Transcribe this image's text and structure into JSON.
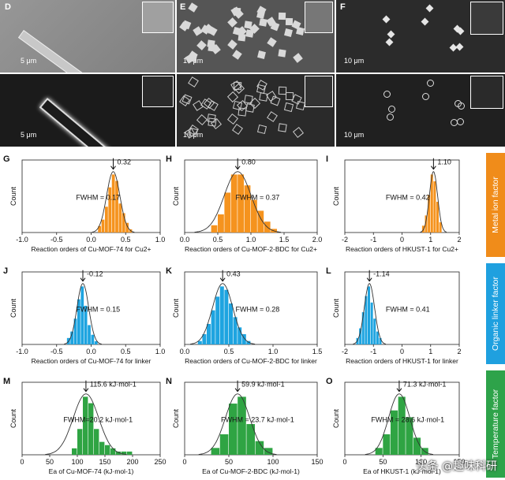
{
  "micrographs": [
    {
      "label": "D",
      "scale_top": "5 μm",
      "scale_bottom": "5 μm"
    },
    {
      "label": "E",
      "scale_top": "10 μm",
      "scale_bottom": "10 μm"
    },
    {
      "label": "F",
      "scale_top": "10 μm",
      "scale_bottom": "10 μm"
    }
  ],
  "side_labels": [
    {
      "text": "Metal ion factor",
      "color": "#f08c1a"
    },
    {
      "text": "Organic linker factor",
      "color": "#1fa0df"
    },
    {
      "text": "Temperature factor",
      "color": "#2ea34a"
    }
  ],
  "watermark": "头条 @趣味科研",
  "chart_data": [
    {
      "label": "G",
      "type": "bar",
      "color": "#f5931e",
      "ylabel": "Count",
      "xlabel": "Reaction orders of Cu-MOF-74 for Cu2+",
      "xlim": [
        -1.0,
        1.0
      ],
      "xticks": [
        "-1.0",
        "-0.5",
        "0.0",
        "0.5",
        "1.0"
      ],
      "peak_label": "0.32",
      "peak": 0.32,
      "fwhm_label": "FWHM = 0.17",
      "bin_edges": [
        0.1,
        0.15,
        0.2,
        0.25,
        0.3,
        0.35,
        0.4,
        0.45,
        0.5,
        0.55,
        0.6
      ],
      "counts": [
        2,
        4,
        8,
        14,
        18,
        16,
        9,
        6,
        3,
        1
      ]
    },
    {
      "label": "H",
      "type": "bar",
      "color": "#f5931e",
      "ylabel": "Count",
      "xlabel": "Reaction orders of Cu-MOF-2-BDC for Cu2+",
      "xlim": [
        0.0,
        2.0
      ],
      "xticks": [
        "0.0",
        "0.5",
        "1.0",
        "1.5",
        "2.0"
      ],
      "peak_label": "0.80",
      "peak": 0.8,
      "fwhm_label": "FWHM = 0.37",
      "bin_edges": [
        0.4,
        0.5,
        0.6,
        0.7,
        0.8,
        0.9,
        1.0,
        1.1,
        1.2,
        1.3,
        1.4
      ],
      "counts": [
        2,
        5,
        11,
        16,
        16,
        13,
        9,
        6,
        3,
        1
      ]
    },
    {
      "label": "I",
      "type": "bar",
      "color": "#f5931e",
      "ylabel": "Count",
      "xlabel": "Reaction orders of HKUST-1 for Cu2+",
      "xlim": [
        -2,
        2
      ],
      "xticks": [
        "-2",
        "-1",
        "0",
        "1",
        "2"
      ],
      "peak_label": "1.10",
      "peak": 1.1,
      "fwhm_label": "FWHM = 0.42",
      "bin_edges": [
        0.7,
        0.8,
        0.9,
        1.0,
        1.1,
        1.2,
        1.3,
        1.4
      ],
      "counts": [
        2,
        5,
        11,
        17,
        15,
        9,
        3
      ]
    },
    {
      "label": "J",
      "type": "bar",
      "color": "#1ea4e0",
      "ylabel": "Count",
      "xlabel": "Reaction orders of Cu-MOF-74 for linker",
      "xlim": [
        -1.0,
        1.0
      ],
      "xticks": [
        "-1.0",
        "-0.5",
        "0.0",
        "0.5",
        "1.0"
      ],
      "peak_label": "-0.12",
      "peak": -0.12,
      "fwhm_label": "FWHM = 0.15",
      "bin_edges": [
        -0.35,
        -0.3,
        -0.25,
        -0.2,
        -0.15,
        -0.1,
        -0.05,
        0.0,
        0.05,
        0.1
      ],
      "counts": [
        2,
        4,
        8,
        14,
        18,
        12,
        6,
        3,
        1
      ]
    },
    {
      "label": "K",
      "type": "bar",
      "color": "#1ea4e0",
      "ylabel": "Count",
      "xlabel": "Reaction orders of Cu-MOF-2-BDC for linker",
      "xlim": [
        0.0,
        1.5
      ],
      "xticks": [
        "0.0",
        "0.5",
        "1.0",
        "1.5"
      ],
      "peak_label": "0.43",
      "peak": 0.43,
      "fwhm_label": "FWHM = 0.28",
      "bin_edges": [
        0.15,
        0.2,
        0.25,
        0.3,
        0.35,
        0.4,
        0.45,
        0.5,
        0.55,
        0.6,
        0.65,
        0.7,
        0.75
      ],
      "counts": [
        1,
        3,
        6,
        10,
        14,
        17,
        16,
        12,
        8,
        5,
        3,
        1
      ]
    },
    {
      "label": "L",
      "type": "bar",
      "color": "#1ea4e0",
      "ylabel": "Count",
      "xlabel": "Reaction orders of HKUST-1 for linker",
      "xlim": [
        -2,
        2
      ],
      "xticks": [
        "-2",
        "-1",
        "0",
        "1",
        "2"
      ],
      "peak_label": "-1.14",
      "peak": -1.14,
      "fwhm_label": "FWHM = 0.41",
      "bin_edges": [
        -1.6,
        -1.5,
        -1.4,
        -1.3,
        -1.2,
        -1.1,
        -1.0,
        -0.9,
        -0.8,
        -0.7
      ],
      "counts": [
        2,
        5,
        10,
        15,
        18,
        13,
        8,
        4,
        2
      ]
    },
    {
      "label": "M",
      "type": "bar",
      "color": "#2fa443",
      "ylabel": "Count",
      "xlabel": "Ea of Cu-MOF-74 (kJ·mol-1)",
      "xlim": [
        0,
        250
      ],
      "xticks": [
        "0",
        "50",
        "100",
        "150",
        "200",
        "250"
      ],
      "peak_label": "115.6 kJ·mol-1",
      "peak": 115.6,
      "fwhm_label": "FWHM=20.2 kJ·mol-1",
      "bin_edges": [
        90,
        100,
        110,
        120,
        130,
        140,
        150,
        160,
        170,
        180,
        190,
        200
      ],
      "counts": [
        2,
        8,
        18,
        16,
        8,
        4,
        3,
        2,
        1,
        1,
        1
      ]
    },
    {
      "label": "N",
      "type": "bar",
      "color": "#2fa443",
      "ylabel": "Count",
      "xlabel": "Ea of Cu-MOF-2-BDC (kJ·mol-1)",
      "xlim": [
        0,
        150
      ],
      "xticks": [
        "0",
        "50",
        "100",
        "150"
      ],
      "peak_label": "59.9 kJ·mol-1",
      "peak": 59.9,
      "fwhm_label": "FWHM = 23.7 kJ·mol-1",
      "bin_edges": [
        30,
        40,
        50,
        60,
        70,
        80,
        90,
        100
      ],
      "counts": [
        2,
        6,
        15,
        17,
        9,
        4,
        2
      ]
    },
    {
      "label": "O",
      "type": "bar",
      "color": "#2fa443",
      "ylabel": "Count",
      "xlabel": "Ea of HKUST-1 (kJ·mol-1)",
      "xlim": [
        0,
        150
      ],
      "xticks": [
        "0",
        "50",
        "100",
        "150"
      ],
      "peak_label": "71.3 kJ·mol-1",
      "peak": 71.3,
      "fwhm_label": "FWHM = 28.6 kJ·mol-1",
      "bin_edges": [
        40,
        50,
        60,
        70,
        80,
        90,
        100,
        110
      ],
      "counts": [
        2,
        6,
        13,
        17,
        11,
        5,
        2
      ]
    }
  ]
}
